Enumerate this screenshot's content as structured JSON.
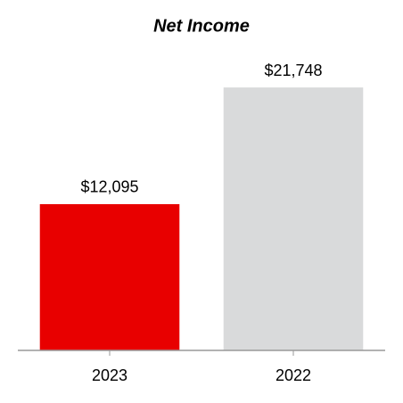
{
  "chart_data": {
    "type": "bar",
    "title": "Net Income",
    "categories": [
      "2023",
      "2022"
    ],
    "values": [
      12095,
      21748
    ],
    "value_labels": [
      "$12,095",
      "$21,748"
    ],
    "colors": [
      "#e80000",
      "#d9dadb"
    ],
    "ylim": [
      0,
      25000
    ]
  }
}
